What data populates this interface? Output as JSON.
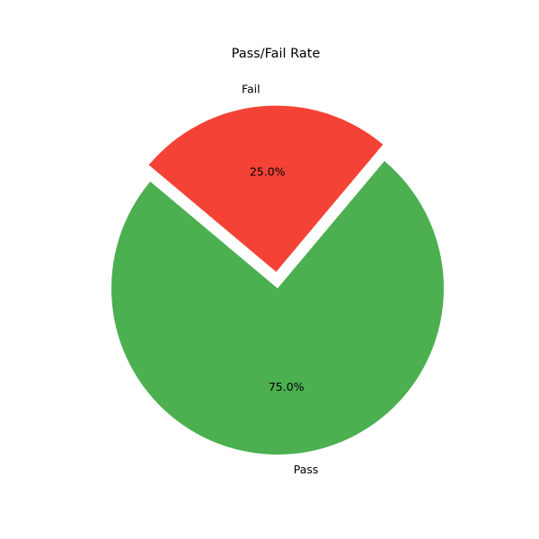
{
  "chart_data": {
    "type": "pie",
    "title": "Pass/Fail Rate",
    "slices": [
      {
        "label": "Pass",
        "value": 75,
        "pct_label": "75.0%",
        "color": "#4caf50",
        "explode": 0
      },
      {
        "label": "Fail",
        "value": 25,
        "pct_label": "25.0%",
        "color": "#f44336",
        "explode": 0.1
      }
    ],
    "start_angle_deg": 140,
    "legend": "none"
  }
}
